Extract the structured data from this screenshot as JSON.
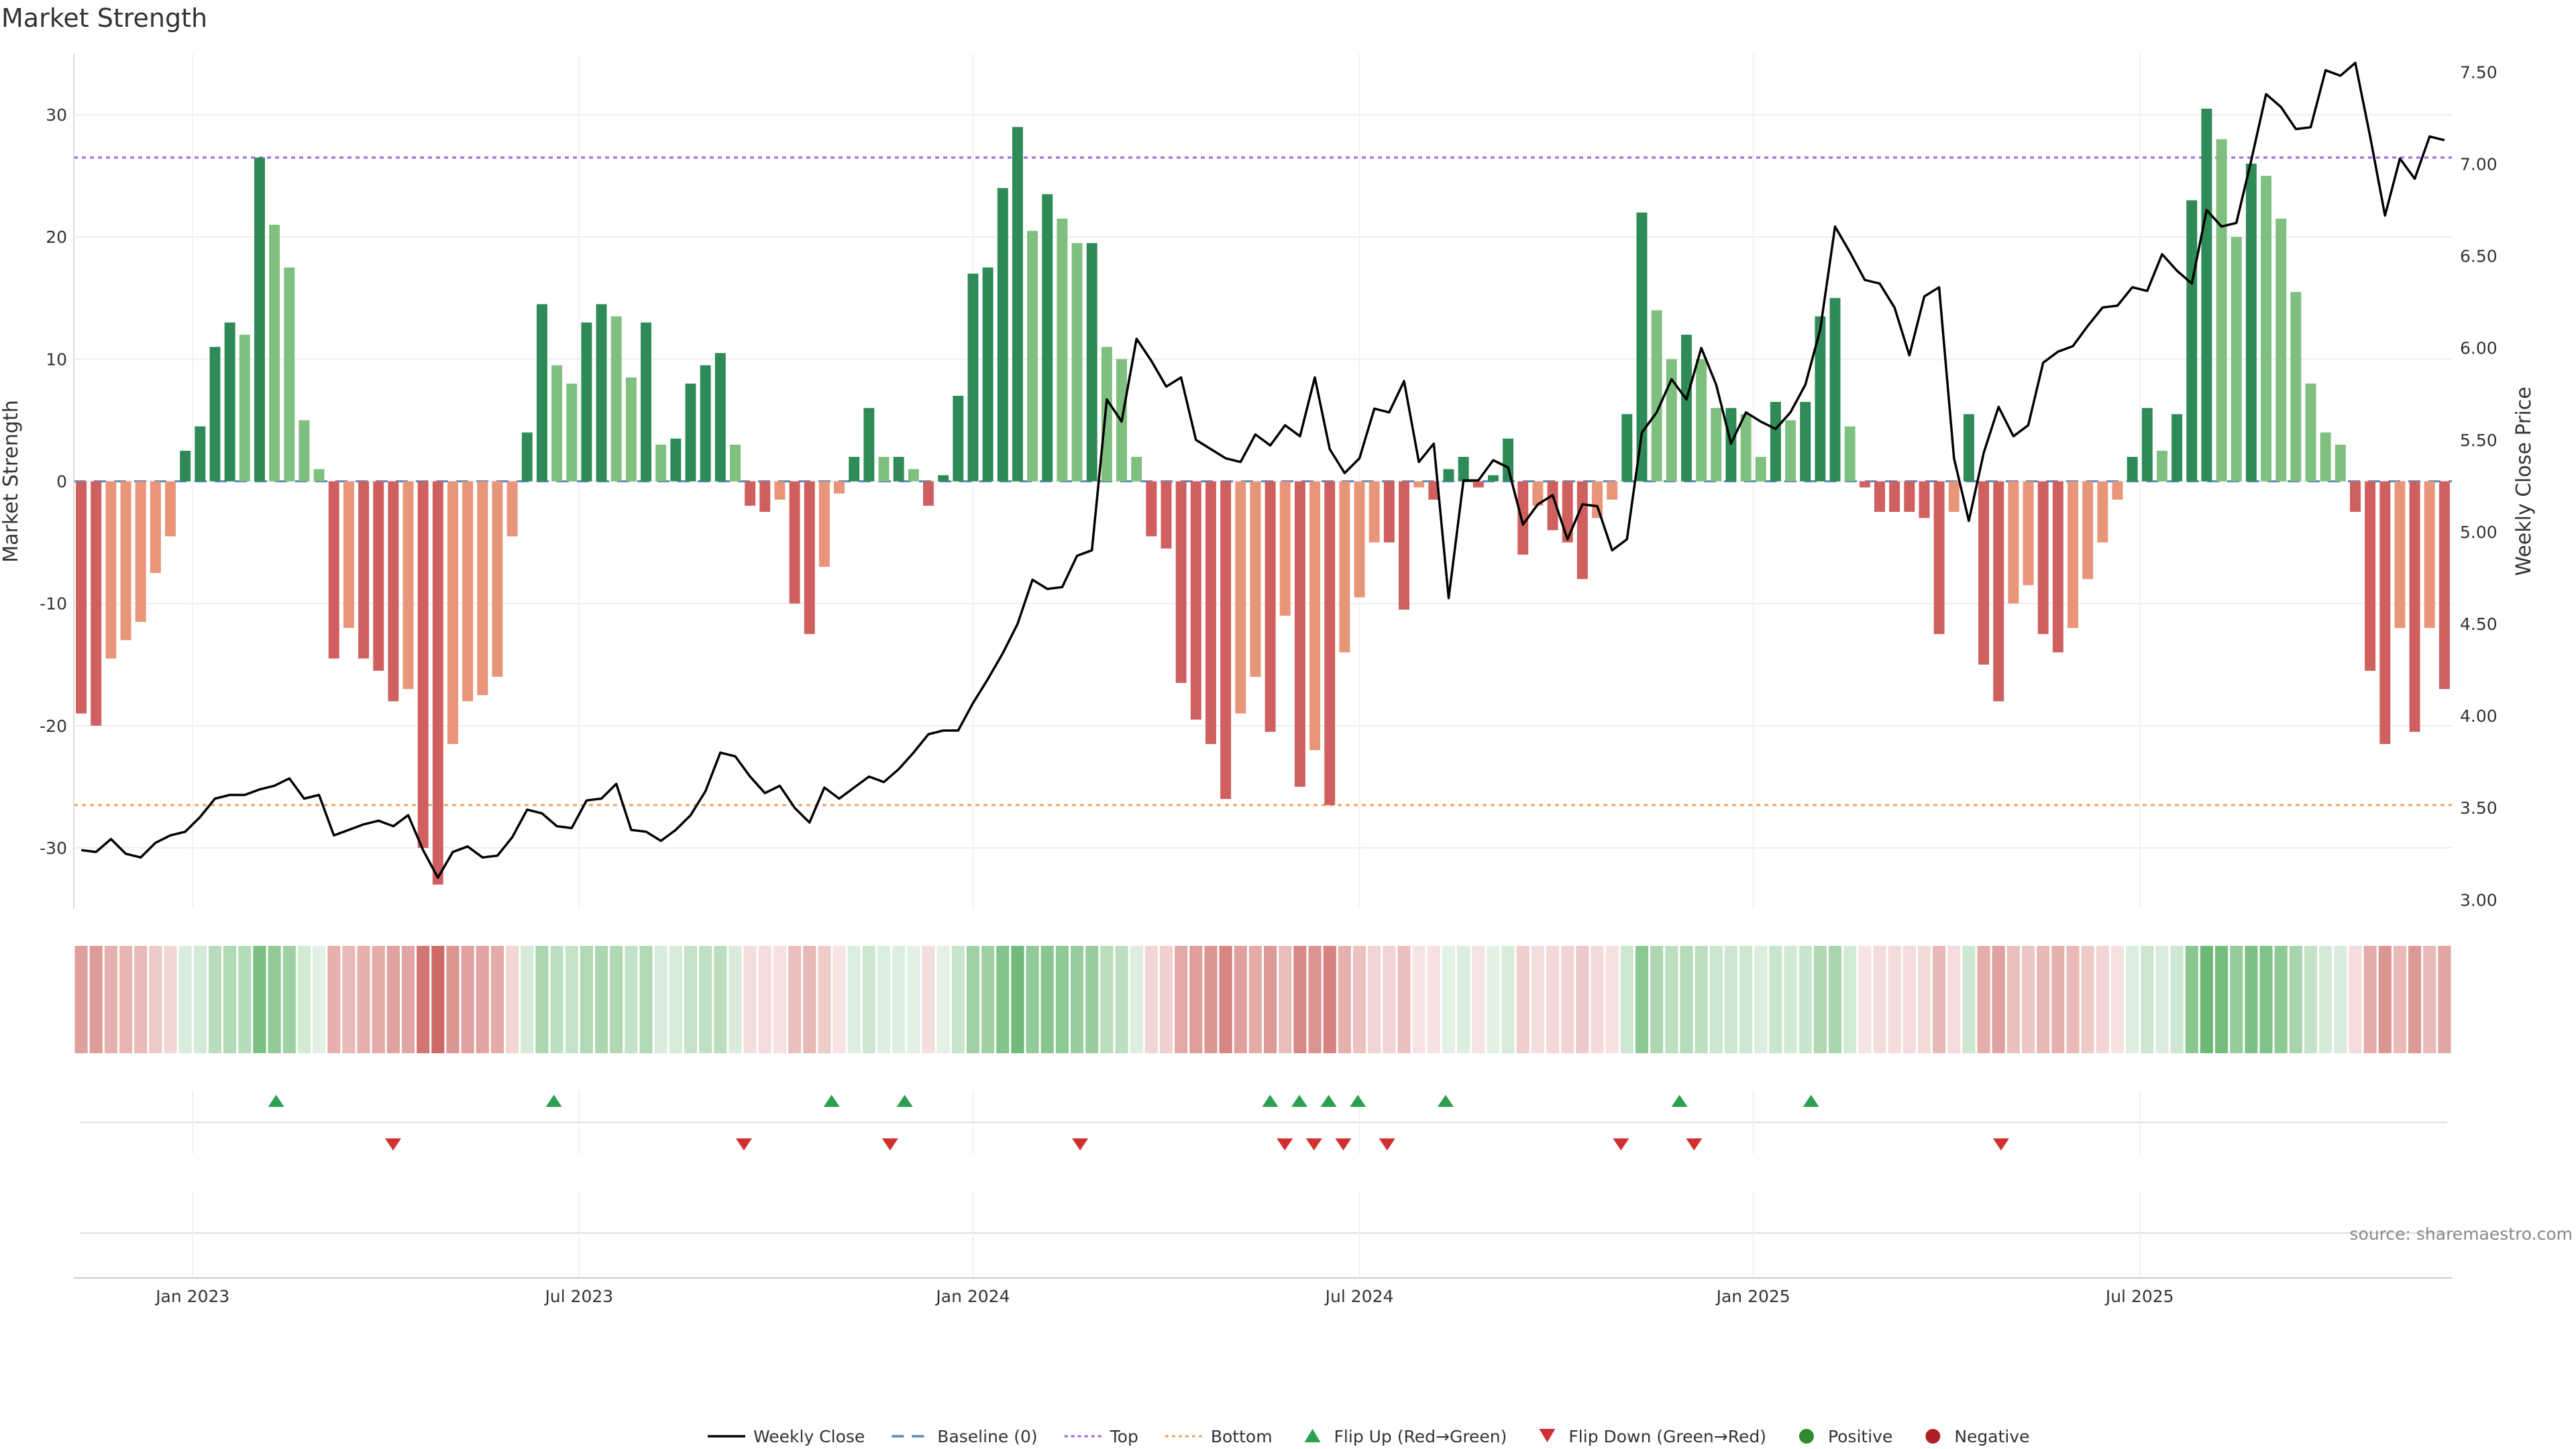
{
  "title": "Market Strength",
  "source": "source: sharemaestro.com",
  "colors": {
    "pos_dark": "#2e8b57",
    "pos_light": "#7fbf7f",
    "neg_dark": "#d06060",
    "neg_light": "#e8957a",
    "price": "#000000",
    "baseline": "#5a8ab5",
    "top": "#a060e0",
    "bottom": "#f0a060",
    "flip_up": "#2aa050",
    "flip_down": "#d03030",
    "positive": "#2e8b2e",
    "negative": "#b02020"
  },
  "chart_data": {
    "type": "bar",
    "title": "Market Strength",
    "ylabel_left": "Market Strength",
    "ylabel_right": "Weekly Close Price",
    "ylim_left": [
      -35,
      35
    ],
    "ylim_right": [
      2.95,
      7.6
    ],
    "y_ticks_left": [
      -30,
      -20,
      -10,
      0,
      10,
      20,
      30
    ],
    "y_ticks_right": [
      "3.00",
      "3.50",
      "4.00",
      "4.50",
      "5.00",
      "5.50",
      "6.00",
      "6.50",
      "7.00",
      "7.50"
    ],
    "x_ticks": [
      {
        "label": "Jan 2023",
        "index": 7.5
      },
      {
        "label": "Jul 2023",
        "index": 33.5
      },
      {
        "label": "Jan 2024",
        "index": 60
      },
      {
        "label": "Jul 2024",
        "index": 86
      },
      {
        "label": "Jan 2025",
        "index": 112.5
      },
      {
        "label": "Jul 2025",
        "index": 138.5
      }
    ],
    "top_line": 26.5,
    "bottom_line": -26.5,
    "bars": [
      -19,
      -20,
      -14.5,
      -13,
      -11.5,
      -7.5,
      -4.5,
      2.5,
      4.5,
      11,
      13,
      12,
      26.5,
      21,
      17.5,
      5,
      1,
      -14.5,
      -12,
      -14.5,
      -15.5,
      -18,
      -17,
      -30,
      -33,
      -21.5,
      -18,
      -17.5,
      -16,
      -4.5,
      4,
      14.5,
      9.5,
      8,
      13,
      14.5,
      13.5,
      8.5,
      13,
      3,
      3.5,
      8,
      9.5,
      10.5,
      3,
      -2,
      -2.5,
      -1.5,
      -10,
      -12.5,
      -7,
      -1,
      2,
      6,
      2,
      2,
      1,
      -2,
      0.5,
      7,
      17,
      17.5,
      24,
      29,
      20.5,
      23.5,
      21.5,
      19.5,
      19.5,
      11,
      10,
      2,
      -4.5,
      -5.5,
      -16.5,
      -19.5,
      -21.5,
      -26,
      -19,
      -16,
      -20.5,
      -11,
      -25,
      -22,
      -26.5,
      -14,
      -9.5,
      -5,
      -5,
      -10.5,
      -0.5,
      -1.5,
      1,
      2,
      -0.5,
      0.5,
      3.5,
      -6,
      -2,
      -4,
      -5,
      -8,
      -3,
      -1.5,
      5.5,
      22,
      14,
      10,
      12,
      10,
      6,
      6,
      5.5,
      2,
      6.5,
      5,
      6.5,
      13.5,
      15,
      4.5,
      -0.5,
      -2.5,
      -2.5,
      -2.5,
      -3,
      -12.5,
      -2.5,
      5.5,
      -15,
      -18,
      -10,
      -8.5,
      -12.5,
      -14,
      -12,
      -8,
      -5,
      -1.5,
      2,
      6,
      2.5,
      5.5,
      23,
      30.5,
      28,
      20,
      26,
      25,
      21.5,
      15.5,
      8,
      4,
      3,
      -2.5,
      -15.5,
      -21.5,
      -12,
      -20.5,
      -12,
      -17
    ],
    "price": [
      3.27,
      3.26,
      3.33,
      3.25,
      3.23,
      3.31,
      3.35,
      3.37,
      3.45,
      3.55,
      3.57,
      3.57,
      3.6,
      3.62,
      3.66,
      3.55,
      3.57,
      3.35,
      3.38,
      3.41,
      3.43,
      3.4,
      3.46,
      3.27,
      3.12,
      3.26,
      3.29,
      3.23,
      3.24,
      3.34,
      3.49,
      3.47,
      3.4,
      3.39,
      3.54,
      3.55,
      3.63,
      3.38,
      3.37,
      3.32,
      3.38,
      3.46,
      3.59,
      3.8,
      3.78,
      3.67,
      3.58,
      3.62,
      3.5,
      3.42,
      3.61,
      3.55,
      3.61,
      3.67,
      3.64,
      3.71,
      3.8,
      3.9,
      3.92,
      3.92,
      4.07,
      4.2,
      4.34,
      4.5,
      4.74,
      4.69,
      4.7,
      4.87,
      4.9,
      5.72,
      5.6,
      6.05,
      5.93,
      5.79,
      5.84,
      5.5,
      5.45,
      5.4,
      5.38,
      5.53,
      5.47,
      5.58,
      5.52,
      5.84,
      5.45,
      5.32,
      5.4,
      5.67,
      5.65,
      5.82,
      5.38,
      5.48,
      4.64,
      5.28,
      5.28,
      5.39,
      5.35,
      5.04,
      5.15,
      5.2,
      4.96,
      5.15,
      5.14,
      4.9,
      4.96,
      5.54,
      5.65,
      5.83,
      5.72,
      6.0,
      5.8,
      5.48,
      5.65,
      5.6,
      5.56,
      5.65,
      5.8,
      6.1,
      6.66,
      6.52,
      6.37,
      6.35,
      6.22,
      5.96,
      6.28,
      6.33,
      5.4,
      5.06,
      5.43,
      5.68,
      5.52,
      5.58,
      5.92,
      5.98,
      6.01,
      6.12,
      6.22,
      6.23,
      6.33,
      6.31,
      6.51,
      6.42,
      6.35,
      6.75,
      6.66,
      6.68,
      7.02,
      7.38,
      7.31,
      7.19,
      7.2,
      7.51,
      7.48,
      7.55,
      7.15,
      6.72,
      7.03,
      6.92,
      7.15,
      7.13
    ],
    "flip_up_indices": [
      6,
      25,
      44,
      49,
      74,
      76,
      78,
      80,
      86,
      102,
      111
    ],
    "flip_down_indices": [
      14,
      38,
      48,
      61,
      75,
      77,
      79,
      82,
      98,
      103,
      124
    ],
    "legend": [
      {
        "label": "Weekly Close",
        "kind": "line"
      },
      {
        "label": "Baseline (0)",
        "kind": "dash"
      },
      {
        "label": "Top",
        "kind": "dot-purple"
      },
      {
        "label": "Bottom",
        "kind": "dot-orange"
      },
      {
        "label": "Flip Up (Red→Green)",
        "kind": "tri-up"
      },
      {
        "label": "Flip Down (Green→Red)",
        "kind": "tri-down"
      },
      {
        "label": "Positive",
        "kind": "dot-green"
      },
      {
        "label": "Negative",
        "kind": "dot-red"
      }
    ]
  }
}
